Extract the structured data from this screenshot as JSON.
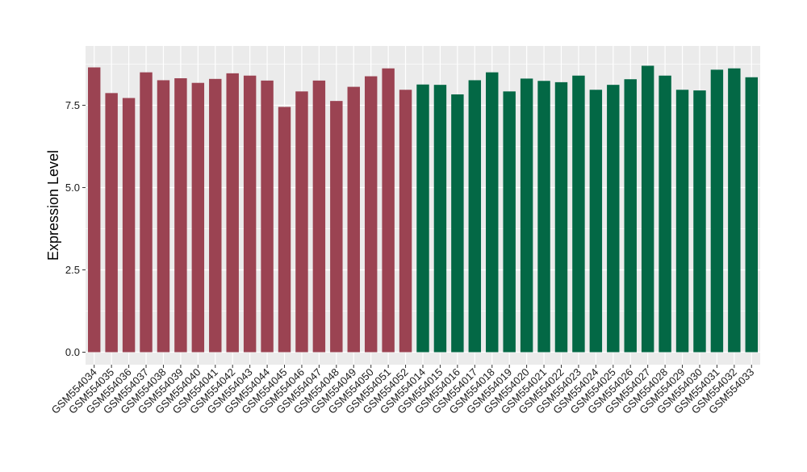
{
  "chart_data": {
    "type": "bar",
    "ylabel": "Expression Level",
    "xlabel": "",
    "ylim": [
      -0.38,
      9.3
    ],
    "yticks": [
      0.0,
      2.5,
      5.0,
      7.5
    ],
    "ytick_labels": [
      "0.0",
      "2.5",
      "5.0",
      "7.5"
    ],
    "grid": true,
    "categories": [
      "GSM554034",
      "GSM554035",
      "GSM554036",
      "GSM554037",
      "GSM554038",
      "GSM554039",
      "GSM554040",
      "GSM554041",
      "GSM554042",
      "GSM554043",
      "GSM554044",
      "GSM554045",
      "GSM554046",
      "GSM554047",
      "GSM554048",
      "GSM554049",
      "GSM554050",
      "GSM554051",
      "GSM554052",
      "GSM554014",
      "GSM554015",
      "GSM554016",
      "GSM554017",
      "GSM554018",
      "GSM554019",
      "GSM554020",
      "GSM554021",
      "GSM554022",
      "GSM554023",
      "GSM554024",
      "GSM554025",
      "GSM554026",
      "GSM554027",
      "GSM554028",
      "GSM554029",
      "GSM554030",
      "GSM554031",
      "GSM554032",
      "GSM554033"
    ],
    "values": [
      8.65,
      7.87,
      7.72,
      8.5,
      8.26,
      8.32,
      8.18,
      8.3,
      8.47,
      8.4,
      8.25,
      7.45,
      7.92,
      8.25,
      7.63,
      8.06,
      8.38,
      8.62,
      7.97,
      8.13,
      8.12,
      7.83,
      8.26,
      8.5,
      7.92,
      8.31,
      8.24,
      8.2,
      8.4,
      7.97,
      8.12,
      8.29,
      8.7,
      8.4,
      7.97,
      7.95,
      8.58,
      8.62,
      8.35
    ],
    "bar_colors": [
      "#9b4352",
      "#9b4352",
      "#9b4352",
      "#9b4352",
      "#9b4352",
      "#9b4352",
      "#9b4352",
      "#9b4352",
      "#9b4352",
      "#9b4352",
      "#9b4352",
      "#9b4352",
      "#9b4352",
      "#9b4352",
      "#9b4352",
      "#9b4352",
      "#9b4352",
      "#9b4352",
      "#9b4352",
      "#036845",
      "#036845",
      "#036845",
      "#036845",
      "#036845",
      "#036845",
      "#036845",
      "#036845",
      "#036845",
      "#036845",
      "#036845",
      "#036845",
      "#036845",
      "#036845",
      "#036845",
      "#036845",
      "#036845",
      "#036845",
      "#036845",
      "#036845"
    ],
    "panel_background": "#ebebeb",
    "grid_color": "#ffffff"
  }
}
